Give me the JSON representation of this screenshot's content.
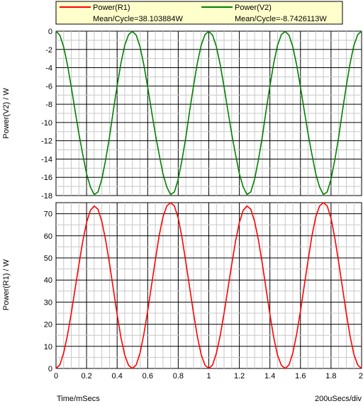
{
  "legend": {
    "background": "#ffffcc",
    "items": [
      {
        "label": "Power(R1)",
        "stat": "Mean/Cycle=38.103884W",
        "color": "#ff0000"
      },
      {
        "label": "Power(V2)",
        "stat": "Mean/Cycle=-8.7426113W",
        "color": "#008000"
      }
    ]
  },
  "footer": {
    "xlabel": "Time/mSecs",
    "scale": "200uSecs/div"
  },
  "chart_data": [
    {
      "type": "line",
      "panel": "top",
      "ylabel": "Power(V2) / W",
      "xlim": [
        0,
        2
      ],
      "ylim": [
        -18,
        0
      ],
      "yticks": [
        "0",
        "-2",
        "-4",
        "-6",
        "-8",
        "-10",
        "-12",
        "-14",
        "-16",
        "-18"
      ],
      "grid": true,
      "series": [
        {
          "name": "Power(V2)",
          "color": "#008000",
          "x": [
            0,
            0.025,
            0.05,
            0.075,
            0.1,
            0.125,
            0.15,
            0.175,
            0.2,
            0.225,
            0.25,
            0.275,
            0.3,
            0.325,
            0.35,
            0.375,
            0.4,
            0.425,
            0.45,
            0.475,
            0.5,
            0.525,
            0.55,
            0.575,
            0.6,
            0.625,
            0.65,
            0.675,
            0.7,
            0.725,
            0.75,
            0.775,
            0.8,
            0.825,
            0.85,
            0.875,
            0.9,
            0.925,
            0.95,
            0.975,
            1.0,
            1.025,
            1.05,
            1.075,
            1.1,
            1.125,
            1.15,
            1.175,
            1.2,
            1.225,
            1.25,
            1.275,
            1.3,
            1.325,
            1.35,
            1.375,
            1.4,
            1.425,
            1.45,
            1.475,
            1.5,
            1.525,
            1.55,
            1.575,
            1.6,
            1.625,
            1.65,
            1.675,
            1.7,
            1.725,
            1.75,
            1.775,
            1.8,
            1.825,
            1.85,
            1.875,
            1.9,
            1.925,
            1.95,
            1.975,
            2.0
          ],
          "y": [
            0,
            -0.44,
            -1.72,
            -3.69,
            -6.12,
            -8.72,
            -11.25,
            -13.49,
            -15.61,
            -17.06,
            -17.9,
            -17.6,
            -16.2,
            -14.07,
            -11.6,
            -8.7,
            -6.0,
            -3.5,
            -1.54,
            -0.38,
            -0.02,
            -0.44,
            -1.72,
            -3.69,
            -6.12,
            -8.72,
            -11.25,
            -13.49,
            -15.61,
            -17.06,
            -17.9,
            -17.6,
            -16.2,
            -14.07,
            -11.6,
            -8.7,
            -6.0,
            -3.5,
            -1.54,
            -0.38,
            -0.02,
            -0.44,
            -1.72,
            -3.69,
            -6.12,
            -8.72,
            -11.25,
            -13.49,
            -15.61,
            -17.06,
            -17.9,
            -17.6,
            -16.2,
            -14.07,
            -11.6,
            -8.7,
            -6.0,
            -3.5,
            -1.54,
            -0.38,
            -0.02,
            -0.44,
            -1.72,
            -3.69,
            -6.12,
            -8.72,
            -11.25,
            -13.49,
            -15.61,
            -17.06,
            -17.9,
            -17.6,
            -16.2,
            -14.07,
            -11.6,
            -8.7,
            -6.0,
            -3.5,
            -1.54,
            -0.38,
            0
          ]
        }
      ]
    },
    {
      "type": "line",
      "panel": "bottom",
      "ylabel": "Power(R1) / W",
      "xlim": [
        0,
        2
      ],
      "ylim": [
        0,
        75
      ],
      "yticks": [
        "0",
        "10",
        "20",
        "30",
        "40",
        "50",
        "60",
        "70"
      ],
      "xticks": [
        "0",
        "0.2",
        "0.4",
        "0.6",
        "0.8",
        "1",
        "1.2",
        "1.4",
        "1.6",
        "1.8",
        "2"
      ],
      "grid": true,
      "series": [
        {
          "name": "Power(R1)",
          "color": "#ff0000",
          "x": [
            0,
            0.025,
            0.05,
            0.075,
            0.1,
            0.125,
            0.15,
            0.175,
            0.2,
            0.225,
            0.25,
            0.275,
            0.3,
            0.325,
            0.35,
            0.375,
            0.4,
            0.425,
            0.45,
            0.475,
            0.5,
            0.525,
            0.55,
            0.575,
            0.6,
            0.625,
            0.65,
            0.675,
            0.7,
            0.725,
            0.75,
            0.775,
            0.8,
            0.825,
            0.85,
            0.875,
            0.9,
            0.925,
            0.95,
            0.975,
            1.0,
            1.025,
            1.05,
            1.075,
            1.1,
            1.125,
            1.15,
            1.175,
            1.2,
            1.225,
            1.25,
            1.275,
            1.3,
            1.325,
            1.35,
            1.375,
            1.4,
            1.425,
            1.45,
            1.475,
            1.5,
            1.525,
            1.55,
            1.575,
            1.6,
            1.625,
            1.65,
            1.675,
            1.7,
            1.725,
            1.75,
            1.775,
            1.8,
            1.825,
            1.85,
            1.875,
            1.9,
            1.925,
            1.95,
            1.975,
            2.0
          ],
          "y": [
            0,
            1.6,
            7.0,
            15.0,
            25.0,
            36.0,
            47.0,
            57.5,
            66.0,
            71.5,
            73.5,
            72.0,
            66.5,
            58.0,
            47.5,
            36.0,
            24.5,
            14.0,
            6.0,
            1.4,
            0,
            1.6,
            7.0,
            15.5,
            26.0,
            37.5,
            49.0,
            60.0,
            68.5,
            73.5,
            75.0,
            73.5,
            68.0,
            59.0,
            48.0,
            36.5,
            25.0,
            14.5,
            6.3,
            1.5,
            0,
            1.6,
            7.0,
            15.0,
            25.0,
            36.0,
            47.0,
            57.5,
            66.0,
            71.5,
            73.5,
            72.0,
            66.5,
            58.0,
            47.5,
            36.0,
            24.5,
            14.0,
            6.0,
            1.4,
            0,
            1.6,
            7.0,
            15.5,
            26.0,
            37.5,
            49.0,
            60.0,
            68.5,
            73.5,
            75.0,
            73.5,
            68.0,
            59.0,
            48.0,
            36.5,
            25.0,
            14.5,
            6.3,
            1.5,
            0
          ]
        }
      ]
    }
  ]
}
